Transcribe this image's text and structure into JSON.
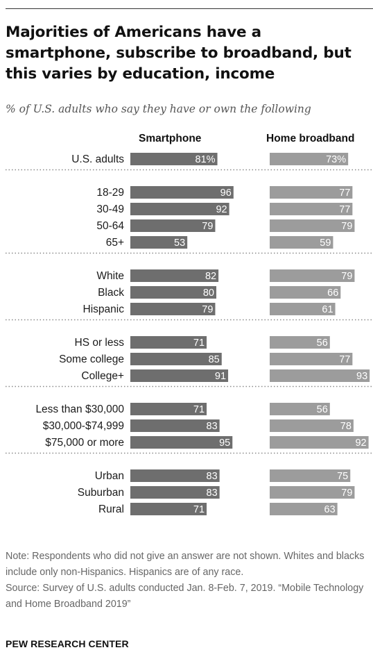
{
  "title": "Majorities of Americans have a smartphone, subscribe to broadband, but this varies by education, income",
  "subtitle": "% of U.S. adults who say they have or own the following",
  "chart_data": {
    "type": "bar",
    "columns": [
      "Smartphone",
      "Home broadband"
    ],
    "groups": [
      {
        "rows": [
          {
            "label": "U.S. adults",
            "values": [
              81,
              73
            ],
            "display": [
              "81%",
              "73%"
            ]
          }
        ]
      },
      {
        "rows": [
          {
            "label": "18-29",
            "values": [
              96,
              77
            ]
          },
          {
            "label": "30-49",
            "values": [
              92,
              77
            ]
          },
          {
            "label": "50-64",
            "values": [
              79,
              79
            ]
          },
          {
            "label": "65+",
            "values": [
              53,
              59
            ]
          }
        ]
      },
      {
        "rows": [
          {
            "label": "White",
            "values": [
              82,
              79
            ]
          },
          {
            "label": "Black",
            "values": [
              80,
              66
            ]
          },
          {
            "label": "Hispanic",
            "values": [
              79,
              61
            ]
          }
        ]
      },
      {
        "rows": [
          {
            "label": "HS or less",
            "values": [
              71,
              56
            ]
          },
          {
            "label": "Some college",
            "values": [
              85,
              77
            ]
          },
          {
            "label": "College+",
            "values": [
              91,
              93
            ]
          }
        ]
      },
      {
        "rows": [
          {
            "label": "Less than $30,000",
            "values": [
              71,
              56
            ]
          },
          {
            "label": "$30,000-$74,999",
            "values": [
              83,
              78
            ]
          },
          {
            "label": "$75,000 or more",
            "values": [
              95,
              92
            ]
          }
        ]
      },
      {
        "rows": [
          {
            "label": "Urban",
            "values": [
              83,
              75
            ]
          },
          {
            "label": "Suburban",
            "values": [
              83,
              79
            ]
          },
          {
            "label": "Rural",
            "values": [
              71,
              63
            ]
          }
        ]
      }
    ],
    "colors": [
      "#6e6e6e",
      "#9c9c9c"
    ]
  },
  "notes": [
    "Note: Respondents who did not give an answer are not shown. Whites and blacks include only non-Hispanics. Hispanics are of any race.",
    "Source: Survey of U.S. adults conducted Jan. 8-Feb. 7, 2019. “Mobile Technology and Home Broadband 2019”"
  ],
  "logo": "PEW RESEARCH CENTER"
}
